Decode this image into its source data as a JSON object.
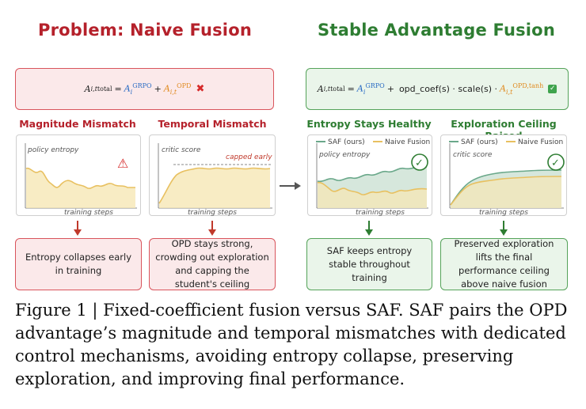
{
  "titles": {
    "left": "Problem: Naive Fusion",
    "right": "Stable Advantage Fusion"
  },
  "formula_left": {
    "lhs": "A",
    "lhs_sub": "i,t",
    "lhs_sup": "total",
    "eq": "=",
    "a1": "A",
    "a1_sub": "i",
    "a1_sup": "GRPO",
    "plus": "+",
    "a2": "A",
    "a2_sub": "i,t",
    "a2_sup": "OPD",
    "mark": "✖"
  },
  "formula_right": {
    "lhs": "A",
    "lhs_sub": "i,t",
    "lhs_sup": "total",
    "eq": "=",
    "a1": "A",
    "a1_sub": "i",
    "a1_sup": "GRPO",
    "plus": "+",
    "coef": "opd_coef(s) · scale(s) ·",
    "a2": "A",
    "a2_sub": "i,t",
    "a2_sup": "OPD,tanh",
    "mark": "✓"
  },
  "panels": [
    {
      "title": "Magnitude Mismatch",
      "ylabel": "policy entropy",
      "xlabel": "training steps",
      "badge": "⚠",
      "result": "Entropy collapses early in training"
    },
    {
      "title": "Temporal Mismatch",
      "ylabel": "critic score",
      "xlabel": "training steps",
      "annotation": "capped early",
      "result": "OPD stays strong, crowding out exploration and capping the student's ceiling"
    },
    {
      "title": "Entropy Stays Healthy",
      "ylabel": "policy entropy",
      "xlabel": "training steps",
      "legend": [
        "SAF (ours)",
        "Naive Fusion"
      ],
      "badge": "✓",
      "result": "SAF keeps entropy stable throughout training"
    },
    {
      "title": "Exploration Ceiling Raised",
      "ylabel": "critic score",
      "xlabel": "training steps",
      "legend": [
        "SAF (ours)",
        "Naive Fusion"
      ],
      "badge": "✓",
      "result": "Preserved exploration lifts the final performance ceiling above naive fusion"
    }
  ],
  "caption": "Figure 1 | Fixed-coefficient fusion versus SAF. SAF pairs the OPD advantage’s magnitude and temporal mismatches with dedicated control mechanisms, avoiding entropy collapse, preserving exploration, and improving final performance.",
  "colors": {
    "problem": "#b5212b",
    "solution": "#2e7d32",
    "saf_line": "#6aa88a",
    "naive_line": "#e8c060"
  }
}
